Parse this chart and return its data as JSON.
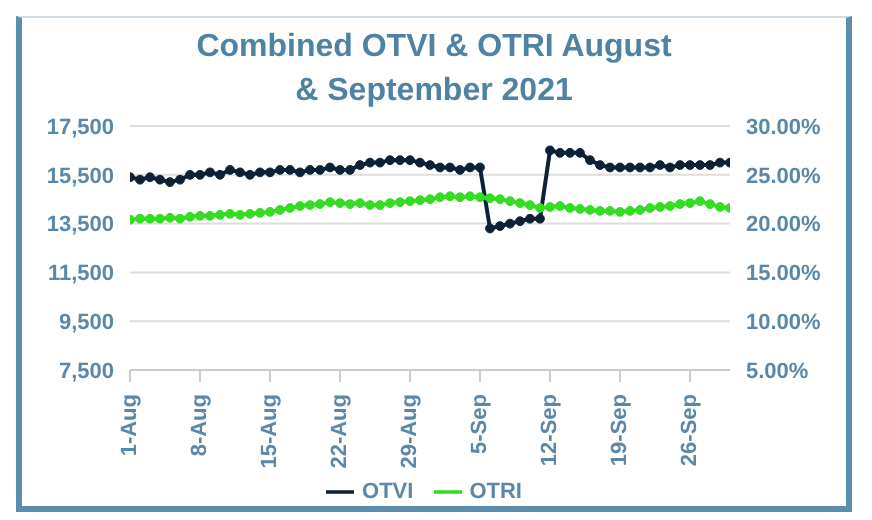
{
  "chart_data": {
    "type": "line",
    "title": "Combined OTVI & OTRI August & September 2021",
    "x": [
      "2021-08-01",
      "2021-08-02",
      "2021-08-03",
      "2021-08-04",
      "2021-08-05",
      "2021-08-06",
      "2021-08-07",
      "2021-08-08",
      "2021-08-09",
      "2021-08-10",
      "2021-08-11",
      "2021-08-12",
      "2021-08-13",
      "2021-08-14",
      "2021-08-15",
      "2021-08-16",
      "2021-08-17",
      "2021-08-18",
      "2021-08-19",
      "2021-08-20",
      "2021-08-21",
      "2021-08-22",
      "2021-08-23",
      "2021-08-24",
      "2021-08-25",
      "2021-08-26",
      "2021-08-27",
      "2021-08-28",
      "2021-08-29",
      "2021-08-30",
      "2021-08-31",
      "2021-09-01",
      "2021-09-02",
      "2021-09-03",
      "2021-09-04",
      "2021-09-05",
      "2021-09-06",
      "2021-09-07",
      "2021-09-08",
      "2021-09-09",
      "2021-09-10",
      "2021-09-11",
      "2021-09-12",
      "2021-09-13",
      "2021-09-14",
      "2021-09-15",
      "2021-09-16",
      "2021-09-17",
      "2021-09-18",
      "2021-09-19",
      "2021-09-20",
      "2021-09-21",
      "2021-09-22",
      "2021-09-23",
      "2021-09-24",
      "2021-09-25",
      "2021-09-26",
      "2021-09-27",
      "2021-09-28",
      "2021-09-29",
      "2021-09-30"
    ],
    "series": [
      {
        "name": "OTVI",
        "color": "#0d2136",
        "values": [
          15400,
          15300,
          15400,
          15300,
          15200,
          15300,
          15500,
          15500,
          15600,
          15500,
          15700,
          15600,
          15500,
          15600,
          15600,
          15700,
          15700,
          15600,
          15700,
          15700,
          15800,
          15700,
          15700,
          15900,
          16000,
          16000,
          16100,
          16100,
          16100,
          16000,
          15900,
          15800,
          15800,
          15700,
          15800,
          15800,
          13300,
          13400,
          13500,
          13600,
          13700,
          13700,
          16500,
          16400,
          16400,
          16400,
          16100,
          15900,
          15800,
          15800,
          15800,
          15800,
          15800,
          15900,
          15800,
          15900,
          15900,
          15900,
          15900,
          16000,
          16000
        ]
      },
      {
        "name": "OTRI",
        "color": "#33dd22",
        "axis": "y2",
        "values": [
          20.4,
          20.5,
          20.5,
          20.5,
          20.6,
          20.5,
          20.7,
          20.8,
          20.8,
          20.9,
          21.0,
          20.9,
          21.0,
          21.1,
          21.2,
          21.4,
          21.6,
          21.8,
          21.9,
          22.0,
          22.2,
          22.1,
          22.0,
          22.1,
          21.9,
          21.9,
          22.1,
          22.2,
          22.3,
          22.4,
          22.5,
          22.7,
          22.8,
          22.7,
          22.8,
          22.7,
          22.6,
          22.5,
          22.3,
          22.1,
          21.9,
          21.6,
          21.7,
          21.8,
          21.6,
          21.5,
          21.4,
          21.3,
          21.3,
          21.2,
          21.3,
          21.4,
          21.6,
          21.7,
          21.8,
          22.0,
          22.1,
          22.3,
          22.0,
          21.7,
          21.6
        ]
      }
    ],
    "xlim": [
      "2021-08-01",
      "2021-09-30"
    ],
    "xticks": [
      {
        "value": "2021-08-01",
        "label": "1-Aug"
      },
      {
        "value": "2021-08-08",
        "label": "8-Aug"
      },
      {
        "value": "2021-08-15",
        "label": "15-Aug"
      },
      {
        "value": "2021-08-22",
        "label": "22-Aug"
      },
      {
        "value": "2021-08-29",
        "label": "29-Aug"
      },
      {
        "value": "2021-09-05",
        "label": "5-Sep"
      },
      {
        "value": "2021-09-12",
        "label": "12-Sep"
      },
      {
        "value": "2021-09-19",
        "label": "19-Sep"
      },
      {
        "value": "2021-09-26",
        "label": "26-Sep"
      }
    ],
    "ylim": [
      7500,
      17500
    ],
    "yticks": [
      {
        "value": 7500,
        "label": "7,500"
      },
      {
        "value": 9500,
        "label": "9,500"
      },
      {
        "value": 11500,
        "label": "11,500"
      },
      {
        "value": 13500,
        "label": "13,500"
      },
      {
        "value": 15500,
        "label": "15,500"
      },
      {
        "value": 17500,
        "label": "17,500"
      }
    ],
    "y2lim": [
      5,
      30
    ],
    "y2ticks": [
      {
        "value": 5,
        "label": "5.00%"
      },
      {
        "value": 10,
        "label": "10.00%"
      },
      {
        "value": 15,
        "label": "15.00%"
      },
      {
        "value": 20,
        "label": "20.00%"
      },
      {
        "value": 25,
        "label": "25.00%"
      },
      {
        "value": 30,
        "label": "30.00%"
      }
    ],
    "grid": "y",
    "legend": "bottom",
    "marker": "circle",
    "line_style": "solid"
  }
}
